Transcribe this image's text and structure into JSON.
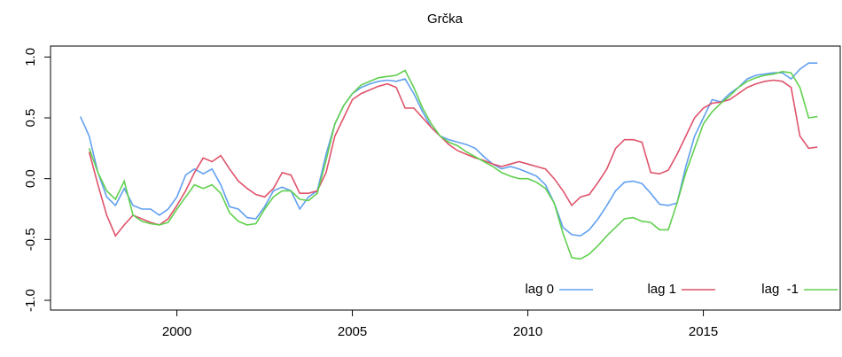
{
  "chart_data": {
    "type": "line",
    "title": "Grčka",
    "x": [
      1997.25,
      1997.5,
      1997.75,
      1998,
      1998.25,
      1998.5,
      1998.75,
      1999,
      1999.25,
      1999.5,
      1999.75,
      2000,
      2000.25,
      2000.5,
      2000.75,
      2001,
      2001.25,
      2001.5,
      2001.75,
      2002,
      2002.25,
      2002.5,
      2002.75,
      2003,
      2003.25,
      2003.5,
      2003.75,
      2004,
      2004.25,
      2004.5,
      2004.75,
      2005,
      2005.25,
      2005.5,
      2005.75,
      2006,
      2006.25,
      2006.5,
      2006.75,
      2007,
      2007.25,
      2007.5,
      2007.75,
      2008,
      2008.25,
      2008.5,
      2008.75,
      2009,
      2009.25,
      2009.5,
      2009.75,
      2010,
      2010.25,
      2010.5,
      2010.75,
      2011,
      2011.25,
      2011.5,
      2011.75,
      2012,
      2012.25,
      2012.5,
      2012.75,
      2013,
      2013.25,
      2013.5,
      2013.75,
      2014,
      2014.25,
      2014.5,
      2014.75,
      2015,
      2015.25,
      2015.5,
      2015.75,
      2016,
      2016.25,
      2016.5,
      2016.75,
      2017,
      2017.25,
      2017.5,
      2017.75,
      2018,
      2018.25
    ],
    "series": [
      {
        "name": "lag 0",
        "color": "#61a0f0",
        "values": [
          0.51,
          0.35,
          0.05,
          -0.15,
          -0.22,
          -0.08,
          -0.22,
          -0.25,
          -0.25,
          -0.3,
          -0.25,
          -0.15,
          0.03,
          0.08,
          0.04,
          0.08,
          -0.05,
          -0.23,
          -0.25,
          -0.32,
          -0.33,
          -0.23,
          -0.1,
          -0.07,
          -0.1,
          -0.25,
          -0.15,
          -0.1,
          0.2,
          0.45,
          0.6,
          0.7,
          0.75,
          0.78,
          0.8,
          0.81,
          0.8,
          0.82,
          0.7,
          0.55,
          0.42,
          0.35,
          0.32,
          0.3,
          0.28,
          0.25,
          0.18,
          0.12,
          0.08,
          0.1,
          0.08,
          0.05,
          0.02,
          -0.05,
          -0.2,
          -0.4,
          -0.46,
          -0.47,
          -0.42,
          -0.33,
          -0.22,
          -0.1,
          -0.03,
          -0.02,
          -0.04,
          -0.12,
          -0.21,
          -0.22,
          -0.2,
          0.1,
          0.35,
          0.5,
          0.65,
          0.63,
          0.7,
          0.75,
          0.82,
          0.85,
          0.86,
          0.87,
          0.87,
          0.82,
          0.9,
          0.95,
          0.95
        ]
      },
      {
        "name": "lag 1",
        "color": "#df536b",
        "values": [
          null,
          0.22,
          -0.05,
          -0.3,
          -0.47,
          -0.38,
          -0.3,
          -0.33,
          -0.36,
          -0.38,
          -0.33,
          -0.22,
          -0.1,
          0.05,
          0.17,
          0.14,
          0.19,
          0.08,
          -0.02,
          -0.08,
          -0.13,
          -0.15,
          -0.08,
          0.05,
          0.03,
          -0.12,
          -0.12,
          -0.1,
          0.05,
          0.35,
          0.5,
          0.65,
          0.7,
          0.73,
          0.76,
          0.78,
          0.75,
          0.58,
          0.58,
          0.5,
          0.42,
          0.35,
          0.28,
          0.23,
          0.2,
          0.17,
          0.15,
          0.12,
          0.1,
          0.12,
          0.14,
          0.12,
          0.1,
          0.08,
          0.0,
          -0.1,
          -0.22,
          -0.15,
          -0.13,
          -0.03,
          0.08,
          0.25,
          0.32,
          0.32,
          0.3,
          0.05,
          0.04,
          0.07,
          0.2,
          0.35,
          0.5,
          0.58,
          0.62,
          0.63,
          0.65,
          0.7,
          0.75,
          0.78,
          0.8,
          0.81,
          0.8,
          0.75,
          0.35,
          0.25,
          0.26
        ]
      },
      {
        "name": "lag  -1",
        "color": "#61d04f",
        "values": [
          null,
          0.25,
          0.05,
          -0.1,
          -0.17,
          -0.02,
          -0.3,
          -0.35,
          -0.37,
          -0.38,
          -0.36,
          -0.25,
          -0.15,
          -0.05,
          -0.08,
          -0.05,
          -0.12,
          -0.28,
          -0.35,
          -0.38,
          -0.37,
          -0.25,
          -0.15,
          -0.1,
          -0.1,
          -0.17,
          -0.18,
          -0.12,
          0.15,
          0.45,
          0.6,
          0.7,
          0.77,
          0.8,
          0.83,
          0.84,
          0.85,
          0.89,
          0.75,
          0.58,
          0.45,
          0.35,
          0.3,
          0.27,
          0.22,
          0.18,
          0.14,
          0.1,
          0.05,
          0.02,
          0.0,
          0.0,
          -0.03,
          -0.08,
          -0.2,
          -0.45,
          -0.65,
          -0.66,
          -0.62,
          -0.55,
          -0.47,
          -0.4,
          -0.33,
          -0.32,
          -0.35,
          -0.36,
          -0.42,
          -0.42,
          -0.2,
          0.05,
          0.25,
          0.45,
          0.55,
          0.62,
          0.68,
          0.75,
          0.8,
          0.83,
          0.85,
          0.86,
          0.88,
          0.87,
          0.75,
          0.5,
          0.51
        ]
      }
    ],
    "xlim": [
      1996.4,
      2018.9
    ],
    "xticks": [
      2000,
      2005,
      2010,
      2015
    ],
    "ylim": [
      -1.08,
      1.09
    ],
    "yticks": [
      {
        "value": -1,
        "label": "-1.0"
      },
      {
        "value": -0.5,
        "label": "-0.5"
      },
      {
        "value": 0,
        "label": "0.0"
      },
      {
        "value": 0.5,
        "label": "0.5"
      },
      {
        "value": 1,
        "label": "1.0"
      }
    ],
    "legend": "bottomright"
  }
}
